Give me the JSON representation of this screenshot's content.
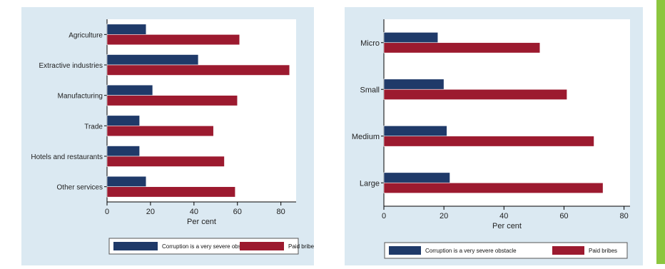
{
  "colors": {
    "series_1": "#1f3a69",
    "series_2": "#9c1a2f",
    "panel_bg": "#dbe9f2",
    "plot_bg": "#ffffff",
    "side_accent": "#8cc63f"
  },
  "chart_data": [
    {
      "type": "bar",
      "orientation": "horizontal",
      "categories": [
        "Agriculture",
        "Extractive industries",
        "Manufacturing",
        "Trade",
        "Hotels and restaurants",
        "Other services"
      ],
      "series": [
        {
          "name": "Corruption is a very severe obstacle",
          "values": [
            18,
            42,
            21,
            15,
            15,
            18
          ]
        },
        {
          "name": "Paid bribes",
          "values": [
            61,
            84,
            60,
            49,
            54,
            59
          ]
        }
      ],
      "xlabel": "Per cent",
      "xlim": [
        0,
        87
      ],
      "xticks": [
        "0",
        "20",
        "40",
        "60",
        "80"
      ],
      "legend_position": "bottom",
      "grid": false
    },
    {
      "type": "bar",
      "orientation": "horizontal",
      "categories": [
        "Micro",
        "Small",
        "Medium",
        "Large"
      ],
      "series": [
        {
          "name": "Corruption is a very severe obstacle",
          "values": [
            18,
            20,
            21,
            22
          ]
        },
        {
          "name": "Paid bribes",
          "values": [
            52,
            61,
            70,
            73
          ]
        }
      ],
      "xlabel": "Per cent",
      "xlim": [
        0,
        82
      ],
      "xticks": [
        "0",
        "20",
        "40",
        "60",
        "80"
      ],
      "legend_position": "bottom",
      "grid": false
    }
  ]
}
